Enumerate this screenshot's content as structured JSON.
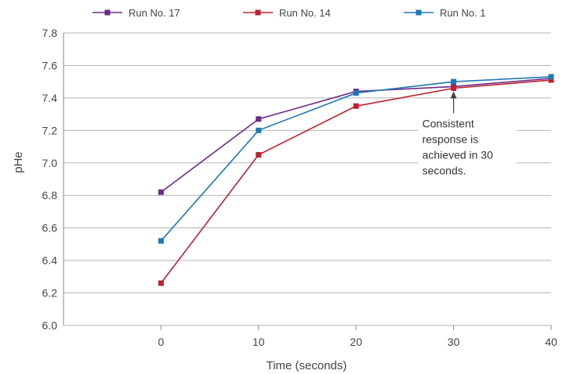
{
  "chart_data": {
    "type": "line",
    "title": "",
    "xlabel": "Time (seconds)",
    "ylabel": "pHe",
    "x": [
      0,
      10,
      20,
      30,
      40
    ],
    "xlim": [
      -10,
      40
    ],
    "ylim": [
      6.0,
      7.8
    ],
    "xticks": [
      "0",
      "10",
      "20",
      "30",
      "40"
    ],
    "yticks": [
      "6.0",
      "6.2",
      "6.4",
      "6.6",
      "6.8",
      "7.0",
      "7.2",
      "7.4",
      "7.6",
      "7.8"
    ],
    "grid": "horizontal",
    "legend_position": "top",
    "series": [
      {
        "name": "Run No. 17",
        "color": "#6a2a8c",
        "values": [
          6.82,
          7.27,
          7.44,
          7.47,
          7.52
        ]
      },
      {
        "name": "Run No. 14",
        "color": "#c0202e",
        "values": [
          6.26,
          7.05,
          7.35,
          7.46,
          7.51
        ]
      },
      {
        "name": "Run No. 1",
        "color": "#1f78b4",
        "values": [
          6.52,
          7.2,
          7.43,
          7.5,
          7.53
        ]
      }
    ],
    "annotation": {
      "lines": [
        "Consistent",
        "response is",
        "achieved in 30",
        "seconds."
      ],
      "arrow_target": {
        "x": 30,
        "y": 7.46
      },
      "arrow_color": "#444444"
    }
  }
}
